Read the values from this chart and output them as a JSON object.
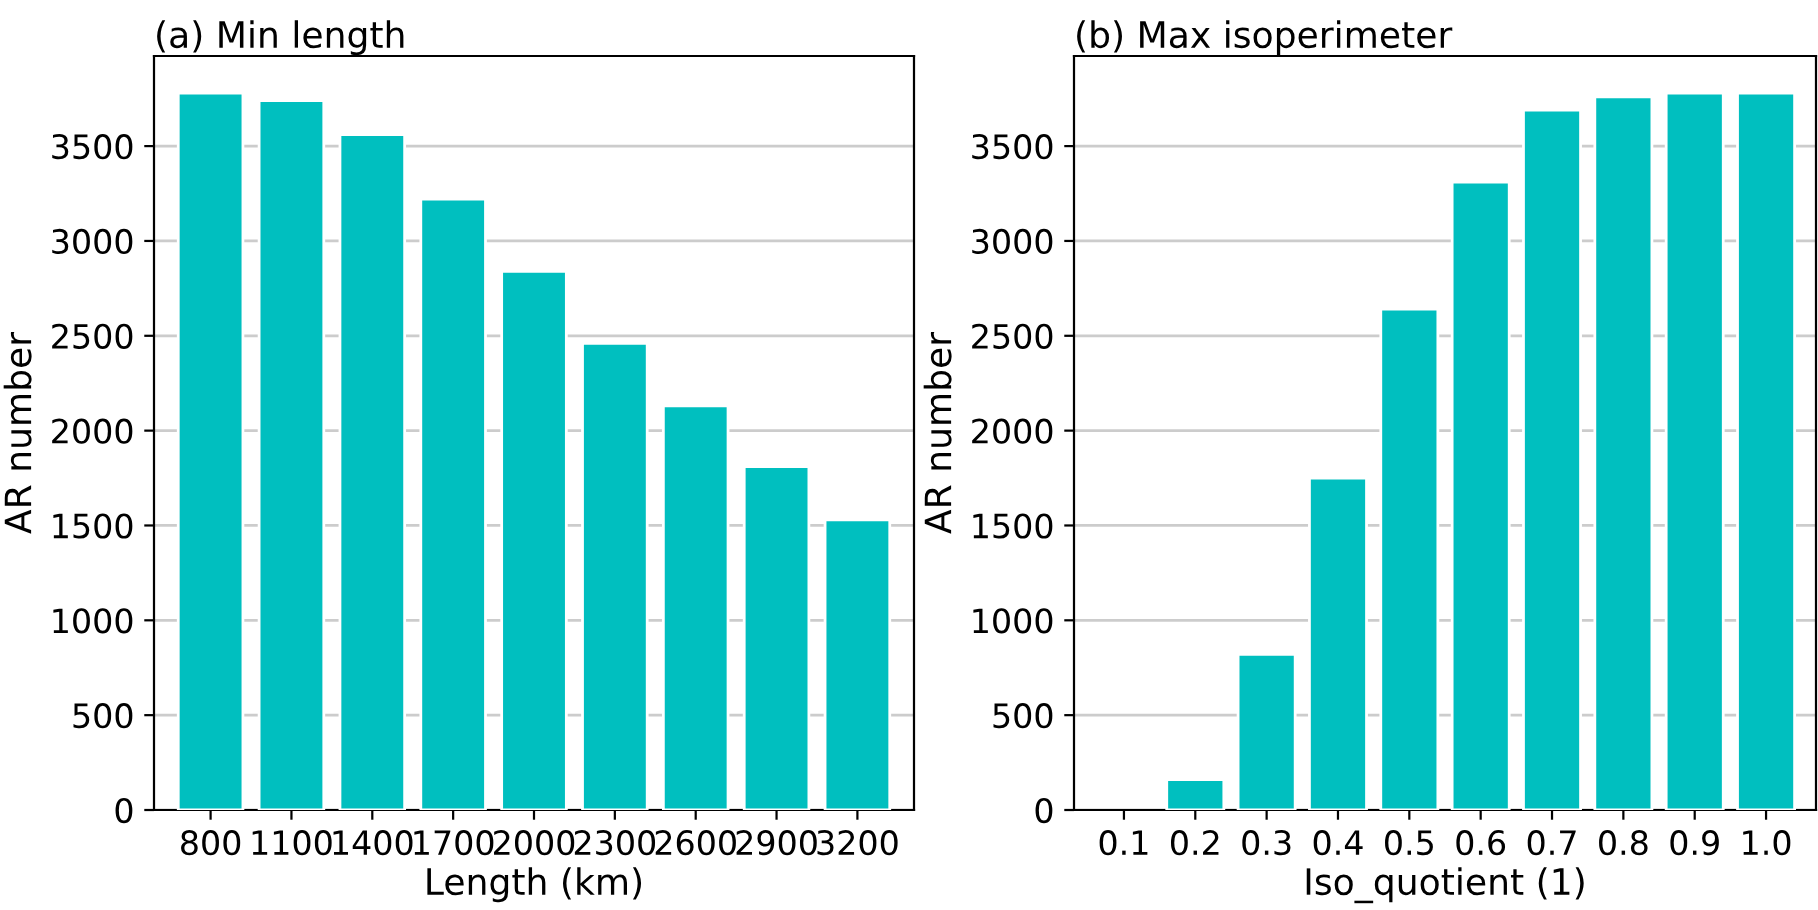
{
  "chart_data": [
    {
      "type": "bar",
      "title": "(a) Min length",
      "xlabel": "Length (km)",
      "ylabel": "AR number",
      "categories": [
        "800",
        "1100",
        "1400",
        "1700",
        "2000",
        "2300",
        "2600",
        "2900",
        "3200"
      ],
      "values": [
        3780,
        3740,
        3560,
        3220,
        2840,
        2460,
        2130,
        1810,
        1530
      ],
      "color": "#00bfbf",
      "ylim": [
        0,
        3975
      ],
      "yticks": [
        0,
        500,
        1000,
        1500,
        2000,
        2500,
        3000,
        3500
      ],
      "grid": "y"
    },
    {
      "type": "bar",
      "title": "(b) Max isoperimeter",
      "xlabel": "Iso_quotient (1)",
      "ylabel": "AR number",
      "categories": [
        "0.1",
        "0.2",
        "0.3",
        "0.4",
        "0.5",
        "0.6",
        "0.7",
        "0.8",
        "0.9",
        "1.0"
      ],
      "values": [
        null,
        160,
        820,
        1750,
        2640,
        3310,
        3690,
        3760,
        3780,
        3780
      ],
      "color": "#00bfbf",
      "ylim": [
        0,
        3975
      ],
      "yticks": [
        0,
        500,
        1000,
        1500,
        2000,
        2500,
        3000,
        3500
      ],
      "grid": "y"
    }
  ]
}
